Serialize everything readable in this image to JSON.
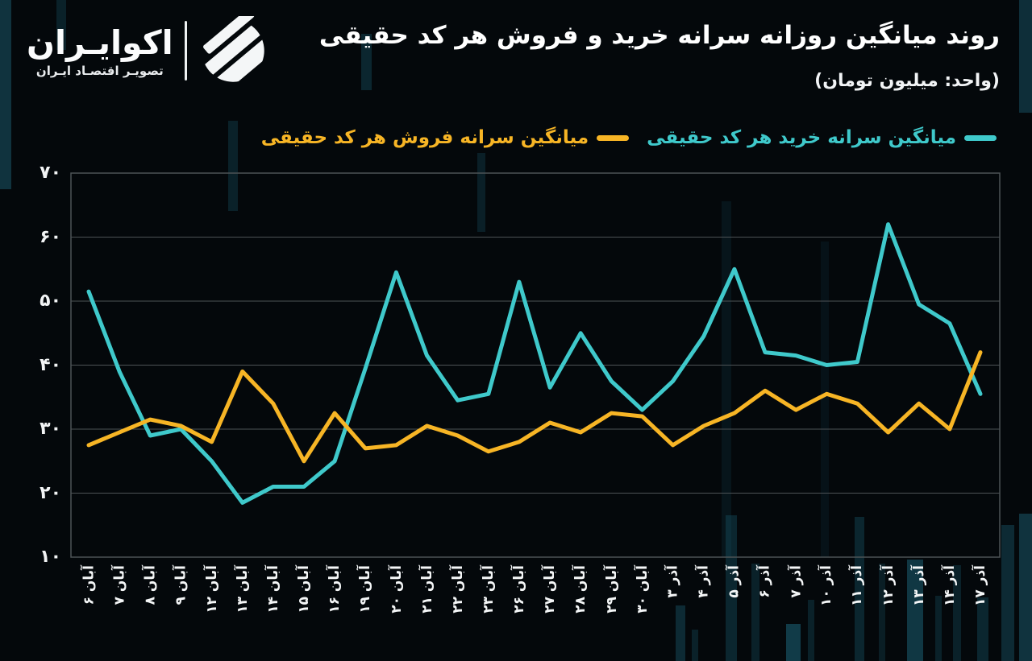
{
  "logo": {
    "wordmark": "اکوایـران",
    "tagline": "تصویـر اقتصـاد ایـران"
  },
  "header": {
    "title": "روند میانگین روزانه سرانه خرید و فروش هر کد حقیقی",
    "subtitle": "(واحد: میلیون تومان)"
  },
  "legend": [
    {
      "key": "buy",
      "label": "میانگین سرانه خرید هر کد حقیقی",
      "color": "#3fc9cb"
    },
    {
      "key": "sell",
      "label": "میانگین سرانه فروش هر کد حقیقی",
      "color": "#f7b525"
    }
  ],
  "chart_data": {
    "type": "line",
    "title": "روند میانگین روزانه سرانه خرید و فروش هر کد حقیقی",
    "unit": "میلیون تومان",
    "x": [
      "آبان ۶",
      "آبان ۷",
      "آبان ۸",
      "آبان ۹",
      "آبان ۱۲",
      "آبان ۱۳",
      "آبان ۱۴",
      "آبان ۱۵",
      "آبان ۱۶",
      "آبان ۱۹",
      "آبان ۲۰",
      "آبان ۲۱",
      "آبان ۲۲",
      "آبان ۲۳",
      "آبان ۲۶",
      "آبان ۲۷",
      "آبان ۲۸",
      "آبان ۲۹",
      "آبان ۳۰",
      "آذر ۳",
      "آذر ۴",
      "آذر ۵",
      "آذر ۶",
      "آذر ۷",
      "آذر ۱۰",
      "آذر ۱۱",
      "آذر ۱۲",
      "آذر ۱۳",
      "آذر ۱۴",
      "آذر ۱۷"
    ],
    "series": [
      {
        "key": "buy",
        "name": "میانگین سرانه خرید هر کد حقیقی",
        "color": "#3fc9cb",
        "values": [
          51.5,
          39,
          29,
          30,
          25,
          18.5,
          21,
          21,
          25,
          39.5,
          54.5,
          41.5,
          34.5,
          35.5,
          53,
          36.5,
          45,
          37.5,
          33,
          37.5,
          44.5,
          55,
          42,
          41.5,
          40,
          40.5,
          62,
          49.5,
          46.5,
          35.5
        ]
      },
      {
        "key": "sell",
        "name": "میانگین سرانه فروش هر کد حقیقی",
        "color": "#f7b525",
        "values": [
          27.5,
          29.5,
          31.5,
          30.5,
          28,
          39,
          34,
          25,
          32.5,
          27,
          27.5,
          30.5,
          29,
          26.5,
          28,
          31,
          29.5,
          32.5,
          32,
          27.5,
          30.5,
          32.5,
          36,
          33,
          35.5,
          34,
          29.5,
          34,
          30,
          42
        ]
      }
    ],
    "ylim": [
      10,
      70
    ],
    "yticks": [
      70,
      60,
      50,
      40,
      30,
      20,
      10
    ],
    "ytick_labels": [
      "۷۰",
      "۶۰",
      "۵۰",
      "۴۰",
      "۳۰",
      "۲۰",
      "۱۰"
    ],
    "grid": "horizontal",
    "legend_position": "top-right"
  }
}
